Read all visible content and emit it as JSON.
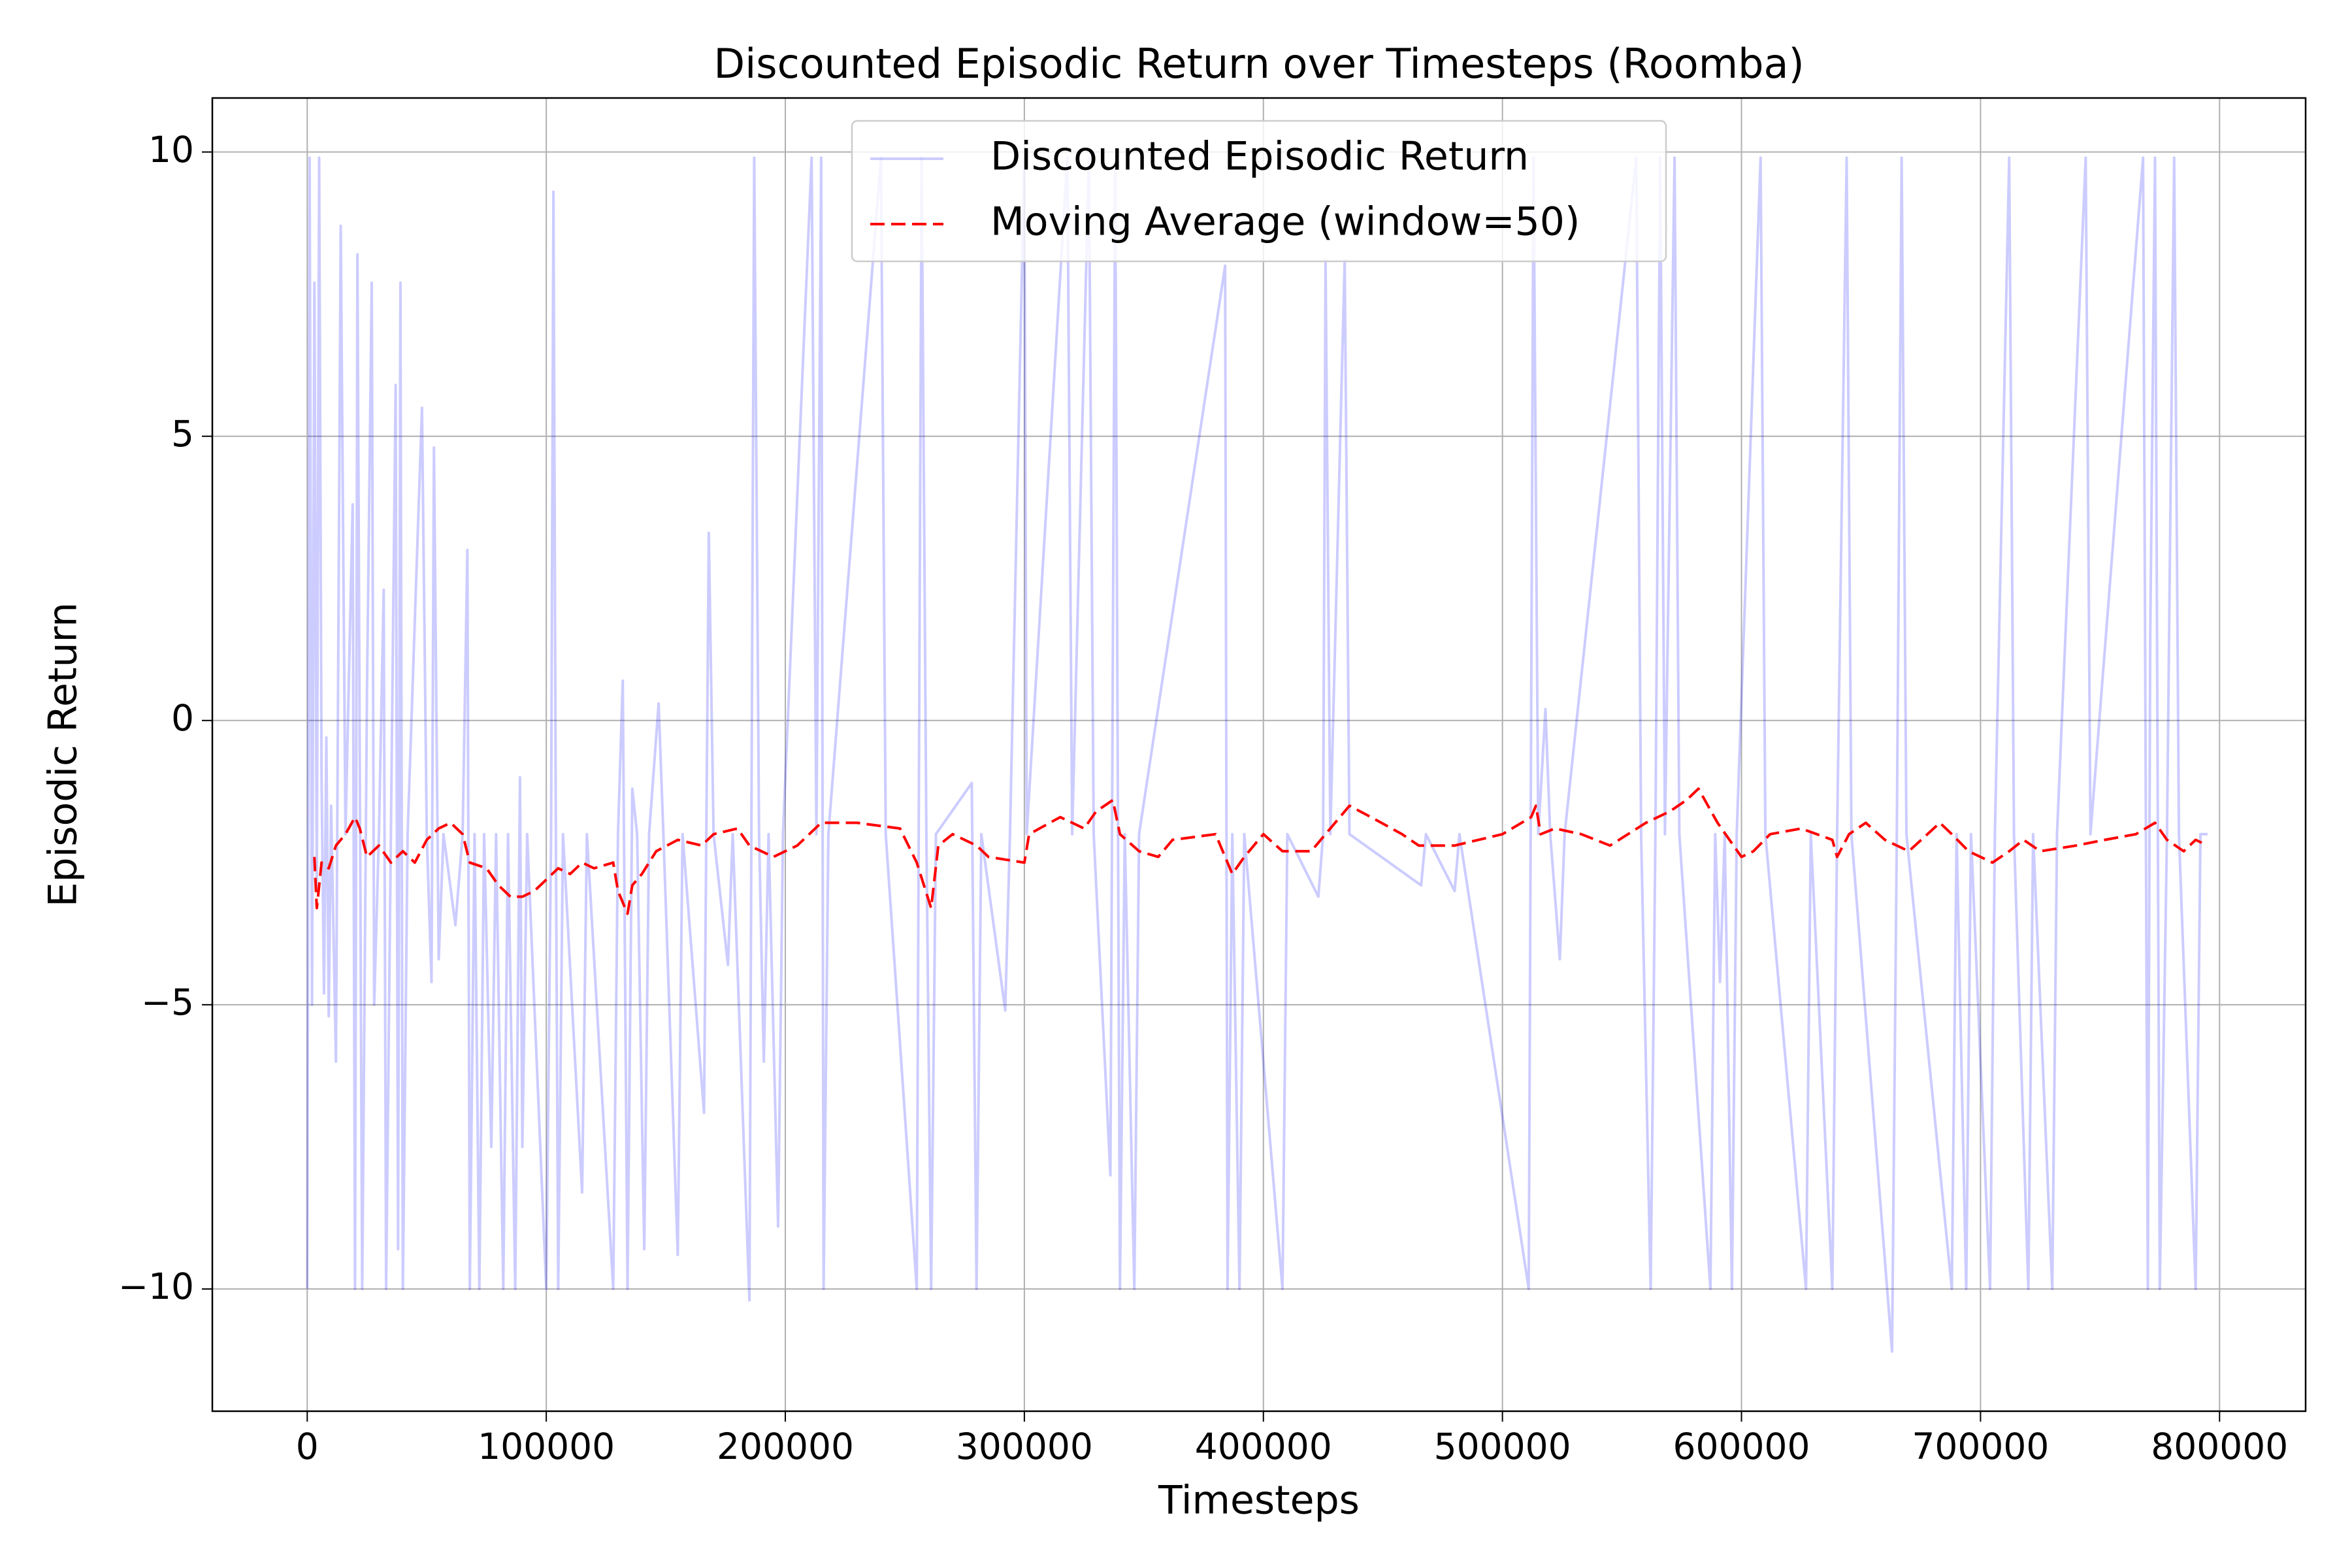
{
  "chart_data": {
    "type": "line",
    "title": "Discounted Episodic Return over Timesteps (Roomba)",
    "x_label": "Timesteps",
    "y_label": "Episodic Return",
    "xlim": [
      -39700,
      836000
    ],
    "ylim": [
      -12.15,
      10.95
    ],
    "xticks": [
      0,
      100000,
      200000,
      300000,
      400000,
      500000,
      600000,
      700000,
      800000
    ],
    "yticks": [
      {
        "value": -10,
        "label": "−10"
      },
      {
        "value": -5,
        "label": "−5"
      },
      0,
      5,
      10
    ],
    "grid": true,
    "legend": "upper center",
    "series": [
      {
        "name": "Discounted Episodic Return",
        "color": "#0000ff",
        "alpha": 0.2,
        "linestyle": "solid",
        "x": [
          0,
          1000,
          2000,
          3000,
          4000,
          5000,
          6000,
          7000,
          8000,
          9000,
          10000,
          12000,
          14000,
          16000,
          19000,
          20000,
          21000,
          23000,
          25000,
          27000,
          28000,
          30000,
          32000,
          33000,
          35000,
          37000,
          38000,
          39000,
          40000,
          42000,
          48000,
          50000,
          52000,
          53000,
          55000,
          57000,
          62000,
          65000,
          67000,
          68000,
          70000,
          72000,
          74000,
          77000,
          79000,
          82000,
          84000,
          87000,
          89000,
          90000,
          92000,
          100000,
          102000,
          103000,
          104000,
          105000,
          107000,
          115000,
          117000,
          128000,
          130000,
          132000,
          134000,
          136000,
          138000,
          141000,
          143000,
          147000,
          149000,
          155000,
          157000,
          166000,
          168000,
          170000,
          176000,
          178000,
          185000,
          187000,
          189000,
          191000,
          193000,
          197000,
          199000,
          211000,
          213000,
          215000,
          216000,
          218000,
          240000,
          242000,
          255000,
          257000,
          259000,
          261000,
          263000,
          278000,
          280000,
          282000,
          292000,
          294000,
          300000,
          301000,
          318000,
          320000,
          327000,
          329000,
          336000,
          338000,
          340000,
          342000,
          346000,
          348000,
          384000,
          385000,
          387000,
          390000,
          392000,
          408000,
          410000,
          423000,
          425000,
          426000,
          428000,
          434000,
          436000,
          466000,
          468000,
          480000,
          482000,
          511000,
          513000,
          515000,
          518000,
          520000,
          524000,
          526000,
          556000,
          558000,
          562000,
          564000,
          566000,
          568000,
          572000,
          574000,
          587000,
          589000,
          591000,
          593000,
          596000,
          598000,
          608000,
          610000,
          627000,
          629000,
          638000,
          640000,
          644000,
          646000,
          663000,
          665000,
          667000,
          669000,
          688000,
          690000,
          694000,
          696000,
          704000,
          706000,
          712000,
          714000,
          720000,
          722000,
          730000,
          732000,
          744000,
          746000,
          768000,
          770000,
          771000,
          773000,
          775000,
          778000,
          781000,
          783000,
          790000,
          792000,
          795000
        ],
        "values": [
          -10,
          9.9,
          -5,
          7.7,
          -3,
          9.9,
          -1,
          -4.8,
          -0.3,
          -5.2,
          -1.5,
          -6,
          8.7,
          -2,
          3.8,
          -10,
          8.2,
          -10,
          0.5,
          7.7,
          -5,
          -2,
          2.3,
          -10,
          -2,
          5.9,
          -9.3,
          7.7,
          -10,
          -2,
          5.5,
          -2,
          -4.6,
          4.8,
          -4.2,
          -2,
          -3.6,
          -2,
          3.0,
          -10,
          -2,
          -10,
          -2,
          -7.5,
          -2,
          -10,
          -2,
          -10,
          -1,
          -7.5,
          -2,
          -10,
          -2,
          9.3,
          -2,
          -10,
          -2,
          -8.3,
          -2,
          -10,
          -2,
          0.7,
          -10,
          -1.2,
          -2,
          -9.3,
          -2,
          0.3,
          -2,
          -9.4,
          -2,
          -6.9,
          3.3,
          -2,
          -4.3,
          -2,
          -10.2,
          9.9,
          -2,
          -6,
          -2,
          -8.9,
          -2,
          9.9,
          -2,
          9.9,
          -10,
          -2,
          9.9,
          -2,
          -10,
          9.9,
          -2,
          -10,
          -2,
          -1.1,
          -10,
          -2,
          -5.1,
          -2,
          9.9,
          -2,
          9.9,
          -2,
          9.9,
          -2,
          -8,
          9.9,
          -10,
          -2,
          -10,
          -2,
          8,
          -10,
          -2,
          -10,
          -2,
          -10,
          -2,
          -3.1,
          -2,
          8.1,
          -2,
          8.1,
          -2,
          -2.9,
          -2,
          -3,
          -2,
          -10,
          9.9,
          -2,
          0.2,
          -2,
          -4.2,
          -2,
          9.9,
          -2,
          -10,
          -2,
          9.9,
          -2,
          9.9,
          -2,
          -10,
          -2,
          -4.6,
          -2,
          -10,
          -2,
          9.9,
          -2,
          -10,
          -2,
          -10,
          -2,
          9.9,
          -2,
          -11.1,
          -2,
          9.9,
          -2,
          -10,
          -2,
          -10,
          -2,
          -10,
          -2,
          9.9,
          -2,
          -10,
          -2,
          -10,
          -2,
          9.9,
          -2,
          9.9,
          -10,
          1.5,
          9.9,
          -10,
          -2,
          9.9,
          -2,
          -10,
          -2,
          -2
        ]
      },
      {
        "name": "Moving Average (window=50)",
        "color": "#ff0000",
        "alpha": 1,
        "linestyle": "dashed",
        "x": [
          3000,
          4000,
          6000,
          9000,
          12000,
          16000,
          20000,
          22000,
          25000,
          30000,
          35000,
          40000,
          45000,
          50000,
          55000,
          60000,
          65000,
          68000,
          75000,
          80000,
          85000,
          90000,
          95000,
          100000,
          105000,
          110000,
          115000,
          120000,
          128000,
          130000,
          134000,
          136000,
          140000,
          146000,
          155000,
          165000,
          170000,
          180000,
          185000,
          195000,
          205000,
          210000,
          215000,
          230000,
          248000,
          255000,
          261000,
          264000,
          270000,
          280000,
          285000,
          300000,
          302000,
          315000,
          325000,
          330000,
          337000,
          340000,
          348000,
          356000,
          362000,
          380000,
          387000,
          392000,
          400000,
          408000,
          420000,
          430000,
          436000,
          445000,
          458000,
          465000,
          480000,
          500000,
          512000,
          514000,
          516000,
          522000,
          533000,
          545000,
          560000,
          570000,
          577000,
          582000,
          590000,
          600000,
          605000,
          612000,
          625000,
          638000,
          640000,
          645000,
          652000,
          660000,
          670000,
          683000,
          688000,
          695000,
          705000,
          712000,
          718000,
          725000,
          740000,
          752000,
          765000,
          773000,
          778000,
          785000,
          790000,
          795000
        ],
        "values": [
          -2.4,
          -3.3,
          -2.5,
          -2.6,
          -2.2,
          -2.0,
          -1.7,
          -1.9,
          -2.4,
          -2.2,
          -2.5,
          -2.3,
          -2.5,
          -2.1,
          -1.9,
          -1.8,
          -2.0,
          -2.5,
          -2.6,
          -2.9,
          -3.1,
          -3.1,
          -3.0,
          -2.8,
          -2.6,
          -2.7,
          -2.5,
          -2.6,
          -2.5,
          -3.0,
          -3.4,
          -2.9,
          -2.7,
          -2.3,
          -2.1,
          -2.2,
          -2.0,
          -1.9,
          -2.2,
          -2.4,
          -2.2,
          -2.0,
          -1.8,
          -1.8,
          -1.9,
          -2.5,
          -3.3,
          -2.2,
          -2.0,
          -2.2,
          -2.4,
          -2.5,
          -2.0,
          -1.7,
          -1.9,
          -1.6,
          -1.4,
          -2.0,
          -2.3,
          -2.4,
          -2.1,
          -2.0,
          -2.7,
          -2.4,
          -2.0,
          -2.3,
          -2.3,
          -1.8,
          -1.5,
          -1.7,
          -2.0,
          -2.2,
          -2.2,
          -2.0,
          -1.7,
          -1.5,
          -2.0,
          -1.9,
          -2.0,
          -2.2,
          -1.8,
          -1.6,
          -1.4,
          -1.2,
          -1.8,
          -2.4,
          -2.3,
          -2.0,
          -1.9,
          -2.1,
          -2.4,
          -2.0,
          -1.8,
          -2.1,
          -2.3,
          -1.8,
          -2.0,
          -2.3,
          -2.5,
          -2.3,
          -2.1,
          -2.3,
          -2.2,
          -2.1,
          -2.0,
          -1.8,
          -2.1,
          -2.3,
          -2.1,
          -2.2
        ]
      }
    ]
  }
}
